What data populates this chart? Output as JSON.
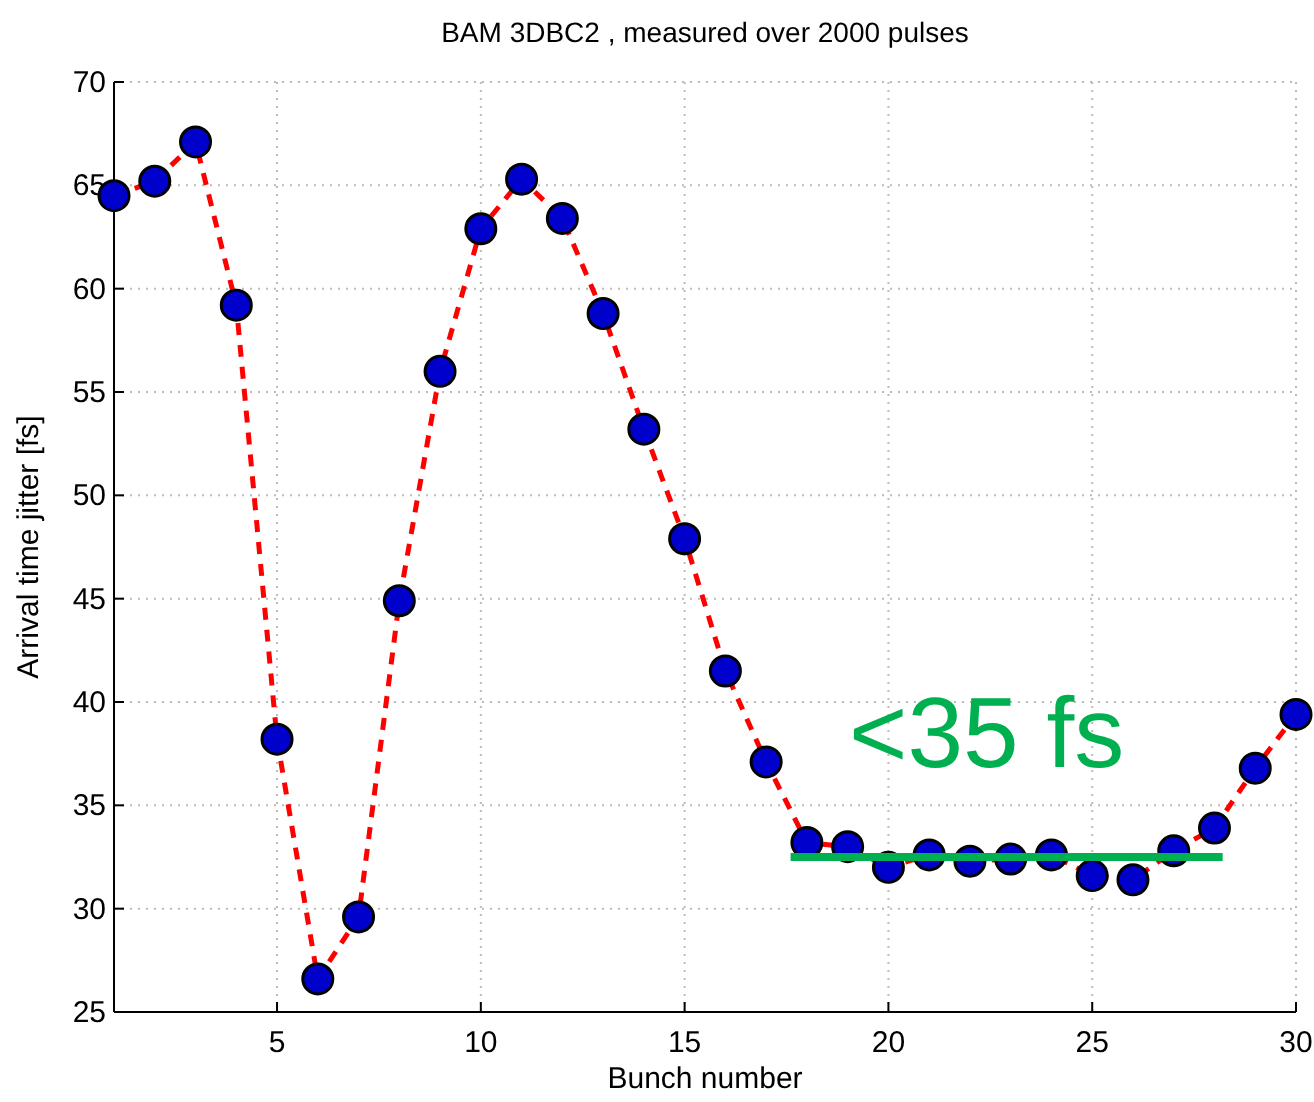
{
  "chart_data": {
    "type": "line",
    "title": "BAM 3DBC2 , measured over 2000 pulses",
    "xlabel": "Bunch number",
    "ylabel": "Arrival time jitter [fs]",
    "x": [
      1,
      2,
      3,
      4,
      5,
      6,
      7,
      8,
      9,
      10,
      11,
      12,
      13,
      14,
      15,
      16,
      17,
      18,
      19,
      20,
      21,
      22,
      23,
      24,
      25,
      26,
      27,
      28,
      29,
      30
    ],
    "series": [
      {
        "color": "#ff0000",
        "marker": "circle",
        "line_style": "dashed",
        "values": [
          64.5,
          65.2,
          67.1,
          59.2,
          38.2,
          26.6,
          29.6,
          44.9,
          56.0,
          62.9,
          65.3,
          63.4,
          58.8,
          53.2,
          47.9,
          41.5,
          37.1,
          33.2,
          33.0,
          32.0,
          32.6,
          32.3,
          32.4,
          32.6,
          31.6,
          31.4,
          32.8,
          33.9,
          36.8,
          39.4
        ]
      },
      {
        "color": "#00b050",
        "marker": "none",
        "line_style": "solid",
        "x": [
          17.6,
          28.2
        ],
        "values": [
          32.5,
          32.5
        ]
      }
    ],
    "annotations": [
      "<35 fs"
    ],
    "xlim": [
      1,
      30
    ],
    "xticks": [
      5,
      10,
      15,
      20,
      25,
      30
    ],
    "ylim": [
      25,
      70
    ],
    "yticks": [
      25,
      30,
      35,
      40,
      45,
      50,
      55,
      60,
      65,
      70
    ],
    "grid": true
  }
}
